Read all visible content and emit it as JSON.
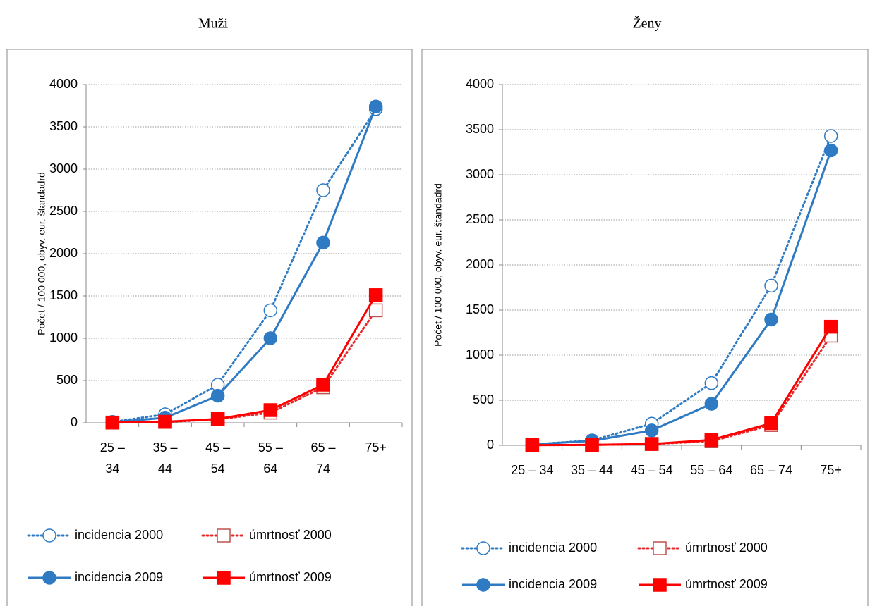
{
  "chart_data": [
    {
      "type": "line",
      "title": "Muži",
      "y_label": "Počet / 100 000, obyv. eur. štandadrd",
      "categories": [
        "25 – 34",
        "35 – 44",
        "45 – 54",
        "55 – 64",
        "65 – 74",
        "75+"
      ],
      "ylim": [
        0,
        4000
      ],
      "yticks": [
        0,
        500,
        1000,
        1500,
        2000,
        2500,
        3000,
        3500,
        4000
      ],
      "grid": true,
      "series": [
        {
          "name": "incidencia 2000",
          "color": "#2e7bc4",
          "line_style": "dotted",
          "marker": "circle",
          "filled": false,
          "values": [
            10,
            100,
            450,
            1330,
            2750,
            3710
          ]
        },
        {
          "name": "úmrtnosť 2000",
          "color": "#e8272b",
          "line_style": "dotted",
          "marker": "square",
          "filled": false,
          "values": [
            2,
            10,
            40,
            120,
            420,
            1330
          ]
        },
        {
          "name": "incidencia 2009",
          "color": "#2e7bc4",
          "line_style": "solid",
          "marker": "circle",
          "filled": true,
          "values": [
            5,
            60,
            320,
            1000,
            2130,
            3740
          ]
        },
        {
          "name": "úmrtnosť 2009",
          "color": "#ff0000",
          "line_style": "solid",
          "marker": "square",
          "filled": true,
          "values": [
            3,
            12,
            45,
            150,
            450,
            1510
          ]
        }
      ]
    },
    {
      "type": "line",
      "title": "Ženy",
      "y_label": "Počet / 100 000, obyv. eur. štandadrd",
      "categories": [
        "25 – 34",
        "35 – 44",
        "45 – 54",
        "55 – 64",
        "65 – 74",
        "75+"
      ],
      "ylim": [
        0,
        4000
      ],
      "yticks": [
        0,
        500,
        1000,
        1500,
        2000,
        2500,
        3000,
        3500,
        4000
      ],
      "grid": true,
      "series": [
        {
          "name": "incidencia 2000",
          "color": "#2e7bc4",
          "line_style": "dotted",
          "marker": "circle",
          "filled": false,
          "values": [
            10,
            55,
            240,
            690,
            1770,
            3430
          ]
        },
        {
          "name": "úmrtnosť 2000",
          "color": "#e8272b",
          "line_style": "dotted",
          "marker": "square",
          "filled": false,
          "values": [
            2,
            5,
            15,
            45,
            225,
            1215
          ]
        },
        {
          "name": "incidencia 2009",
          "color": "#2e7bc4",
          "line_style": "solid",
          "marker": "circle",
          "filled": true,
          "values": [
            10,
            50,
            165,
            460,
            1395,
            3270
          ]
        },
        {
          "name": "úmrtnosť 2009",
          "color": "#ff0000",
          "line_style": "solid",
          "marker": "square",
          "filled": true,
          "values": [
            3,
            5,
            15,
            60,
            245,
            1315
          ]
        }
      ]
    }
  ]
}
